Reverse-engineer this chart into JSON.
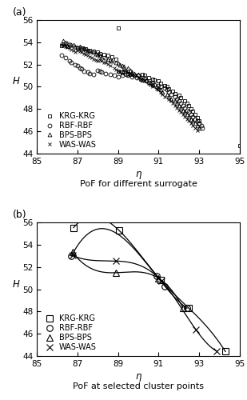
{
  "title_a": "(a)",
  "title_b": "(b)",
  "xlabel_a_label": "PoF for different surrogate",
  "xlabel_b_label": "PoF at selected cluster points",
  "xlim": [
    85,
    95
  ],
  "ylim": [
    44,
    56
  ],
  "xticks": [
    85,
    87,
    89,
    91,
    93,
    95
  ],
  "yticks": [
    44,
    46,
    48,
    50,
    52,
    54,
    56
  ],
  "krg_a": [
    [
      86.2,
      53.7
    ],
    [
      86.3,
      53.85
    ],
    [
      86.5,
      53.6
    ],
    [
      87.0,
      53.5
    ],
    [
      87.2,
      53.45
    ],
    [
      87.4,
      53.4
    ],
    [
      87.6,
      53.3
    ],
    [
      87.8,
      53.2
    ],
    [
      88.0,
      53.1
    ],
    [
      88.1,
      53.0
    ],
    [
      88.3,
      52.9
    ],
    [
      88.5,
      52.8
    ],
    [
      88.7,
      52.7
    ],
    [
      88.9,
      52.5
    ],
    [
      89.0,
      55.3
    ],
    [
      89.0,
      51.4
    ],
    [
      89.2,
      51.3
    ],
    [
      89.3,
      51.4
    ],
    [
      89.5,
      51.2
    ],
    [
      89.6,
      51.1
    ],
    [
      89.8,
      51.05
    ],
    [
      90.0,
      51.0
    ],
    [
      90.2,
      51.1
    ],
    [
      90.3,
      51.0
    ],
    [
      90.5,
      50.8
    ],
    [
      90.7,
      50.7
    ],
    [
      90.8,
      50.6
    ],
    [
      91.0,
      50.5
    ],
    [
      91.1,
      50.3
    ],
    [
      91.3,
      50.1
    ],
    [
      91.4,
      50.0
    ],
    [
      91.5,
      49.8
    ],
    [
      91.7,
      49.6
    ],
    [
      91.8,
      49.4
    ],
    [
      92.0,
      49.2
    ],
    [
      92.1,
      49.0
    ],
    [
      92.3,
      48.7
    ],
    [
      92.4,
      48.5
    ],
    [
      92.5,
      48.3
    ],
    [
      92.6,
      48.0
    ],
    [
      92.7,
      47.8
    ],
    [
      92.8,
      47.5
    ],
    [
      92.9,
      47.2
    ],
    [
      93.0,
      46.9
    ],
    [
      93.0,
      46.7
    ],
    [
      95.0,
      44.7
    ]
  ],
  "rbf_a": [
    [
      86.2,
      52.8
    ],
    [
      86.4,
      52.6
    ],
    [
      86.6,
      52.3
    ],
    [
      86.7,
      52.2
    ],
    [
      86.9,
      52.0
    ],
    [
      87.0,
      51.9
    ],
    [
      87.1,
      51.7
    ],
    [
      87.2,
      51.6
    ],
    [
      87.3,
      51.4
    ],
    [
      87.5,
      51.3
    ],
    [
      87.6,
      51.2
    ],
    [
      87.8,
      51.1
    ],
    [
      88.0,
      51.5
    ],
    [
      88.1,
      51.4
    ],
    [
      88.2,
      51.3
    ],
    [
      88.4,
      51.2
    ],
    [
      88.6,
      51.1
    ],
    [
      88.8,
      51.0
    ],
    [
      89.0,
      50.9
    ],
    [
      89.2,
      51.0
    ],
    [
      89.4,
      51.1
    ],
    [
      89.5,
      51.0
    ],
    [
      89.7,
      50.9
    ],
    [
      89.9,
      50.8
    ],
    [
      90.1,
      50.7
    ],
    [
      90.2,
      50.6
    ],
    [
      90.4,
      50.5
    ],
    [
      90.5,
      50.4
    ],
    [
      90.7,
      50.3
    ],
    [
      90.8,
      50.2
    ],
    [
      91.0,
      50.1
    ],
    [
      91.1,
      50.0
    ],
    [
      91.3,
      49.9
    ],
    [
      91.4,
      49.7
    ],
    [
      91.5,
      49.5
    ],
    [
      91.6,
      49.3
    ],
    [
      91.8,
      49.1
    ],
    [
      91.9,
      48.9
    ],
    [
      92.0,
      48.7
    ],
    [
      92.1,
      48.5
    ],
    [
      92.2,
      48.3
    ],
    [
      92.3,
      48.1
    ],
    [
      92.4,
      47.9
    ],
    [
      92.5,
      47.7
    ],
    [
      92.6,
      47.5
    ],
    [
      92.7,
      47.3
    ],
    [
      92.8,
      47.1
    ],
    [
      92.9,
      46.9
    ],
    [
      93.0,
      46.7
    ],
    [
      93.1,
      46.5
    ],
    [
      93.15,
      46.3
    ]
  ],
  "bps_a": [
    [
      86.3,
      54.1
    ],
    [
      86.4,
      54.0
    ],
    [
      86.5,
      53.9
    ],
    [
      86.6,
      53.85
    ],
    [
      86.7,
      53.8
    ],
    [
      86.8,
      53.75
    ],
    [
      86.9,
      53.65
    ],
    [
      87.0,
      53.55
    ],
    [
      87.1,
      53.6
    ],
    [
      87.2,
      53.5
    ],
    [
      87.3,
      53.45
    ],
    [
      87.4,
      53.35
    ],
    [
      87.5,
      53.3
    ],
    [
      87.6,
      53.2
    ],
    [
      87.8,
      53.1
    ],
    [
      87.9,
      53.0
    ],
    [
      88.0,
      52.9
    ],
    [
      88.1,
      52.8
    ],
    [
      88.2,
      52.7
    ],
    [
      88.4,
      52.6
    ],
    [
      88.5,
      52.5
    ],
    [
      88.6,
      52.4
    ],
    [
      88.7,
      52.3
    ],
    [
      88.9,
      52.2
    ],
    [
      89.0,
      52.1
    ],
    [
      89.1,
      52.0
    ],
    [
      89.2,
      51.9
    ],
    [
      89.3,
      51.8
    ],
    [
      89.5,
      51.7
    ],
    [
      89.6,
      51.5
    ],
    [
      89.7,
      51.3
    ],
    [
      89.8,
      51.2
    ],
    [
      90.0,
      51.1
    ],
    [
      90.1,
      50.9
    ],
    [
      90.3,
      50.8
    ],
    [
      90.4,
      50.6
    ],
    [
      90.6,
      50.4
    ],
    [
      90.7,
      50.2
    ],
    [
      90.9,
      50.0
    ],
    [
      91.0,
      49.9
    ],
    [
      91.1,
      49.7
    ],
    [
      91.2,
      49.5
    ],
    [
      91.4,
      49.3
    ],
    [
      91.5,
      49.1
    ],
    [
      91.6,
      48.9
    ],
    [
      91.8,
      48.7
    ],
    [
      91.9,
      48.5
    ],
    [
      92.0,
      48.3
    ],
    [
      92.1,
      48.1
    ],
    [
      92.2,
      47.9
    ],
    [
      92.3,
      47.7
    ],
    [
      92.4,
      47.5
    ],
    [
      92.5,
      47.3
    ],
    [
      92.6,
      47.1
    ],
    [
      92.7,
      46.9
    ],
    [
      92.8,
      46.7
    ],
    [
      92.9,
      46.5
    ],
    [
      93.0,
      46.3
    ]
  ],
  "was_a": [
    [
      86.2,
      53.8
    ],
    [
      86.3,
      53.7
    ],
    [
      86.4,
      53.65
    ],
    [
      86.5,
      53.55
    ],
    [
      86.6,
      53.45
    ],
    [
      86.7,
      53.35
    ],
    [
      86.8,
      53.25
    ],
    [
      86.9,
      53.15
    ],
    [
      87.0,
      53.3
    ],
    [
      87.1,
      53.2
    ],
    [
      87.2,
      53.1
    ],
    [
      87.3,
      53.0
    ],
    [
      87.4,
      52.9
    ],
    [
      87.5,
      52.8
    ],
    [
      87.6,
      52.7
    ],
    [
      87.7,
      52.6
    ],
    [
      87.8,
      52.5
    ],
    [
      87.9,
      52.4
    ],
    [
      88.0,
      52.35
    ],
    [
      88.1,
      52.4
    ],
    [
      88.2,
      52.3
    ],
    [
      88.3,
      52.2
    ],
    [
      88.4,
      52.15
    ],
    [
      88.5,
      52.05
    ],
    [
      88.6,
      51.9
    ],
    [
      88.8,
      51.7
    ],
    [
      88.9,
      51.55
    ],
    [
      89.0,
      51.4
    ],
    [
      89.1,
      51.3
    ],
    [
      89.2,
      51.2
    ],
    [
      89.3,
      51.5
    ],
    [
      89.4,
      51.4
    ],
    [
      89.5,
      51.3
    ],
    [
      89.6,
      51.2
    ],
    [
      89.7,
      51.1
    ],
    [
      89.8,
      51.0
    ],
    [
      90.0,
      50.8
    ],
    [
      90.1,
      50.7
    ],
    [
      90.2,
      50.6
    ],
    [
      90.3,
      50.5
    ],
    [
      90.5,
      50.3
    ],
    [
      90.6,
      50.2
    ],
    [
      90.7,
      50.0
    ],
    [
      90.9,
      49.8
    ],
    [
      91.0,
      49.7
    ],
    [
      91.1,
      49.5
    ],
    [
      91.2,
      49.3
    ],
    [
      91.3,
      49.1
    ],
    [
      91.5,
      48.9
    ],
    [
      91.6,
      48.7
    ],
    [
      91.7,
      48.5
    ],
    [
      91.8,
      48.3
    ],
    [
      91.9,
      48.1
    ],
    [
      92.0,
      47.9
    ],
    [
      92.1,
      47.7
    ],
    [
      92.2,
      47.5
    ],
    [
      92.3,
      47.3
    ],
    [
      92.4,
      47.1
    ],
    [
      92.5,
      46.9
    ],
    [
      92.6,
      46.7
    ],
    [
      92.7,
      46.5
    ],
    [
      92.8,
      46.3
    ],
    [
      92.9,
      46.1
    ]
  ],
  "krg_b": [
    [
      86.8,
      55.55
    ],
    [
      89.05,
      55.3
    ],
    [
      91.1,
      50.85
    ],
    [
      92.5,
      48.3
    ],
    [
      94.3,
      44.4
    ]
  ],
  "rbf_b": [
    [
      86.7,
      53.0
    ],
    [
      90.9,
      51.2
    ],
    [
      91.3,
      50.3
    ],
    [
      92.4,
      48.3
    ]
  ],
  "bps_b": [
    [
      86.75,
      53.35
    ],
    [
      88.9,
      51.5
    ],
    [
      91.0,
      51.0
    ],
    [
      92.2,
      48.35
    ]
  ],
  "was_b": [
    [
      86.75,
      53.05
    ],
    [
      88.9,
      52.55
    ],
    [
      91.15,
      50.75
    ],
    [
      92.85,
      46.35
    ],
    [
      93.85,
      44.45
    ]
  ],
  "marker_krg": "s",
  "marker_rbf": "o",
  "marker_bps": "^",
  "marker_was": "x",
  "color": "black",
  "markersize_a": 3.5,
  "markersize_b": 5.5,
  "linewidth_b": 0.9,
  "legend_fontsize": 7.0,
  "label_fontsize": 8.5,
  "tick_fontsize": 7.5,
  "annot_fontsize": 9
}
